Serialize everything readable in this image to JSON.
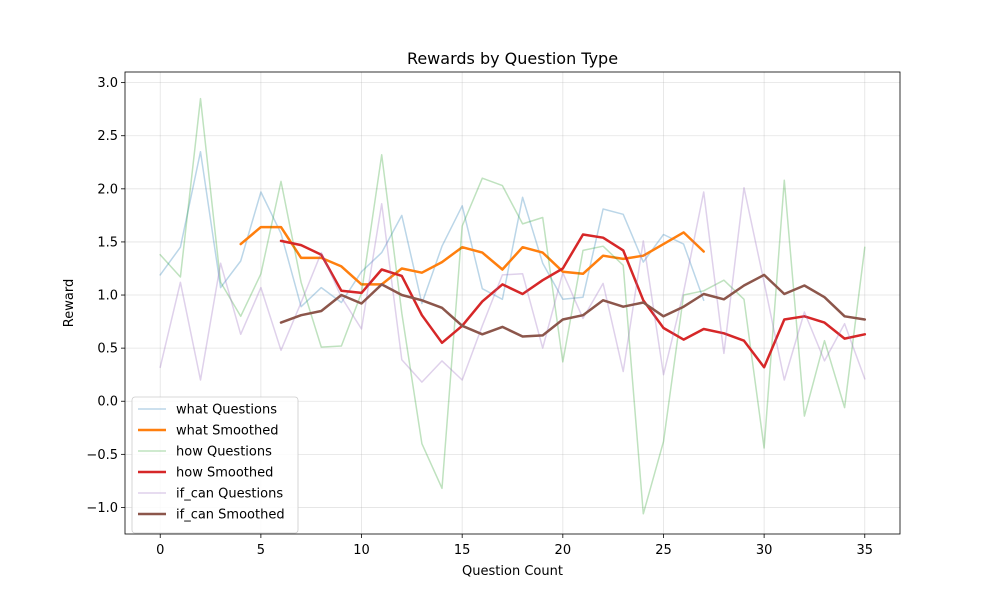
{
  "chart_data": {
    "type": "line",
    "title": "Rewards by Question Type",
    "xlabel": "Question Count",
    "ylabel": "Reward",
    "xlim": [
      -1.75,
      36.75
    ],
    "ylim": [
      -1.25,
      3.1
    ],
    "xticks": [
      0,
      5,
      10,
      15,
      20,
      25,
      30,
      35
    ],
    "yticks": [
      -1.0,
      -0.5,
      0.0,
      0.5,
      1.0,
      1.5,
      2.0,
      2.5,
      3.0
    ],
    "xtick_labels": [
      "0",
      "5",
      "10",
      "15",
      "20",
      "25",
      "30",
      "35"
    ],
    "ytick_labels": [
      "−1.0",
      "−0.5",
      "0.0",
      "0.5",
      "1.0",
      "1.5",
      "2.0",
      "2.5",
      "3.0"
    ],
    "grid": true,
    "legend_position": "lower-left",
    "series": [
      {
        "name": "what Questions",
        "color": "#1f77b4",
        "opacity": 0.3,
        "width": 1.5,
        "x": [
          0,
          1,
          2,
          3,
          4,
          5,
          6,
          7,
          8,
          9,
          10,
          11,
          12,
          13,
          14,
          15,
          16,
          17,
          18,
          19,
          20,
          21,
          22,
          23,
          24,
          25,
          26,
          27
        ],
        "values": [
          1.19,
          1.45,
          2.35,
          1.07,
          1.32,
          1.97,
          1.58,
          0.89,
          1.07,
          0.93,
          1.22,
          1.4,
          1.75,
          0.92,
          1.46,
          1.84,
          1.06,
          0.96,
          1.92,
          1.3,
          0.96,
          0.98,
          1.81,
          1.76,
          1.31,
          1.57,
          1.48,
          0.95
        ]
      },
      {
        "name": "what Smoothed",
        "color": "#ff7f0e",
        "opacity": 1,
        "width": 2.5,
        "x": [
          4,
          5,
          6,
          7,
          8,
          9,
          10,
          11,
          12,
          13,
          14,
          15,
          16,
          17,
          18,
          19,
          20,
          21,
          22,
          23,
          24,
          25,
          26,
          27
        ],
        "values": [
          1.48,
          1.64,
          1.64,
          1.35,
          1.35,
          1.27,
          1.1,
          1.1,
          1.25,
          1.21,
          1.31,
          1.45,
          1.4,
          1.24,
          1.45,
          1.4,
          1.22,
          1.2,
          1.37,
          1.34,
          1.37,
          1.48,
          1.59,
          1.41
        ]
      },
      {
        "name": "how Questions",
        "color": "#2ca02c",
        "opacity": 0.3,
        "width": 1.5,
        "x": [
          0,
          1,
          2,
          3,
          4,
          5,
          6,
          7,
          8,
          9,
          10,
          11,
          12,
          13,
          14,
          15,
          16,
          17,
          18,
          19,
          20,
          21,
          22,
          23,
          24,
          25,
          26,
          27,
          28,
          29,
          30,
          31,
          32,
          33,
          34,
          35
        ],
        "values": [
          1.38,
          1.17,
          2.85,
          1.12,
          0.8,
          1.2,
          2.07,
          1.12,
          0.51,
          0.52,
          1.02,
          2.32,
          0.83,
          -0.4,
          -0.82,
          1.65,
          2.1,
          2.03,
          1.67,
          1.73,
          0.37,
          1.42,
          1.46,
          1.28,
          -1.06,
          -0.38,
          1.0,
          1.04,
          1.14,
          0.96,
          -0.44,
          2.08,
          -0.14,
          0.57,
          -0.06,
          1.45
        ]
      },
      {
        "name": "how Smoothed",
        "color": "#d62728",
        "opacity": 1,
        "width": 2.5,
        "x": [
          6,
          7,
          8,
          9,
          10,
          11,
          12,
          13,
          14,
          15,
          16,
          17,
          18,
          19,
          20,
          21,
          22,
          23,
          24,
          25,
          26,
          27,
          28,
          29,
          30,
          31,
          32,
          33,
          34,
          35
        ],
        "values": [
          1.51,
          1.47,
          1.38,
          1.04,
          1.02,
          1.24,
          1.18,
          0.81,
          0.55,
          0.71,
          0.94,
          1.1,
          1.01,
          1.14,
          1.25,
          1.57,
          1.54,
          1.42,
          0.95,
          0.69,
          0.58,
          0.68,
          0.64,
          0.57,
          0.32,
          0.77,
          0.8,
          0.74,
          0.59,
          0.63
        ]
      },
      {
        "name": "if_can Questions",
        "color": "#9467bd",
        "opacity": 0.3,
        "width": 1.5,
        "x": [
          0,
          1,
          2,
          3,
          4,
          5,
          6,
          7,
          8,
          9,
          10,
          11,
          12,
          13,
          14,
          15,
          16,
          17,
          18,
          19,
          20,
          21,
          22,
          23,
          24,
          25,
          26,
          27,
          28,
          29,
          30,
          31,
          32,
          33,
          34,
          35
        ],
        "values": [
          0.32,
          1.12,
          0.2,
          1.3,
          0.63,
          1.07,
          0.48,
          0.93,
          1.4,
          0.98,
          0.68,
          1.86,
          0.39,
          0.18,
          0.38,
          0.2,
          0.71,
          1.19,
          1.2,
          0.5,
          1.21,
          0.78,
          1.11,
          0.28,
          1.51,
          0.25,
          1.03,
          1.97,
          0.45,
          2.01,
          1.12,
          0.2,
          0.84,
          0.38,
          0.73,
          0.21
        ]
      },
      {
        "name": "if_can Smoothed",
        "color": "#8c564b",
        "opacity": 1,
        "width": 2.5,
        "x": [
          6,
          7,
          8,
          9,
          10,
          11,
          12,
          13,
          14,
          15,
          16,
          17,
          18,
          19,
          20,
          21,
          22,
          23,
          24,
          25,
          26,
          27,
          28,
          29,
          30,
          31,
          32,
          33,
          34,
          35
        ],
        "values": [
          0.74,
          0.81,
          0.85,
          1.0,
          0.92,
          1.1,
          1.0,
          0.95,
          0.88,
          0.71,
          0.63,
          0.7,
          0.61,
          0.62,
          0.77,
          0.81,
          0.95,
          0.89,
          0.93,
          0.8,
          0.89,
          1.01,
          0.96,
          1.09,
          1.19,
          1.01,
          1.09,
          0.98,
          0.8,
          0.77
        ]
      }
    ]
  }
}
